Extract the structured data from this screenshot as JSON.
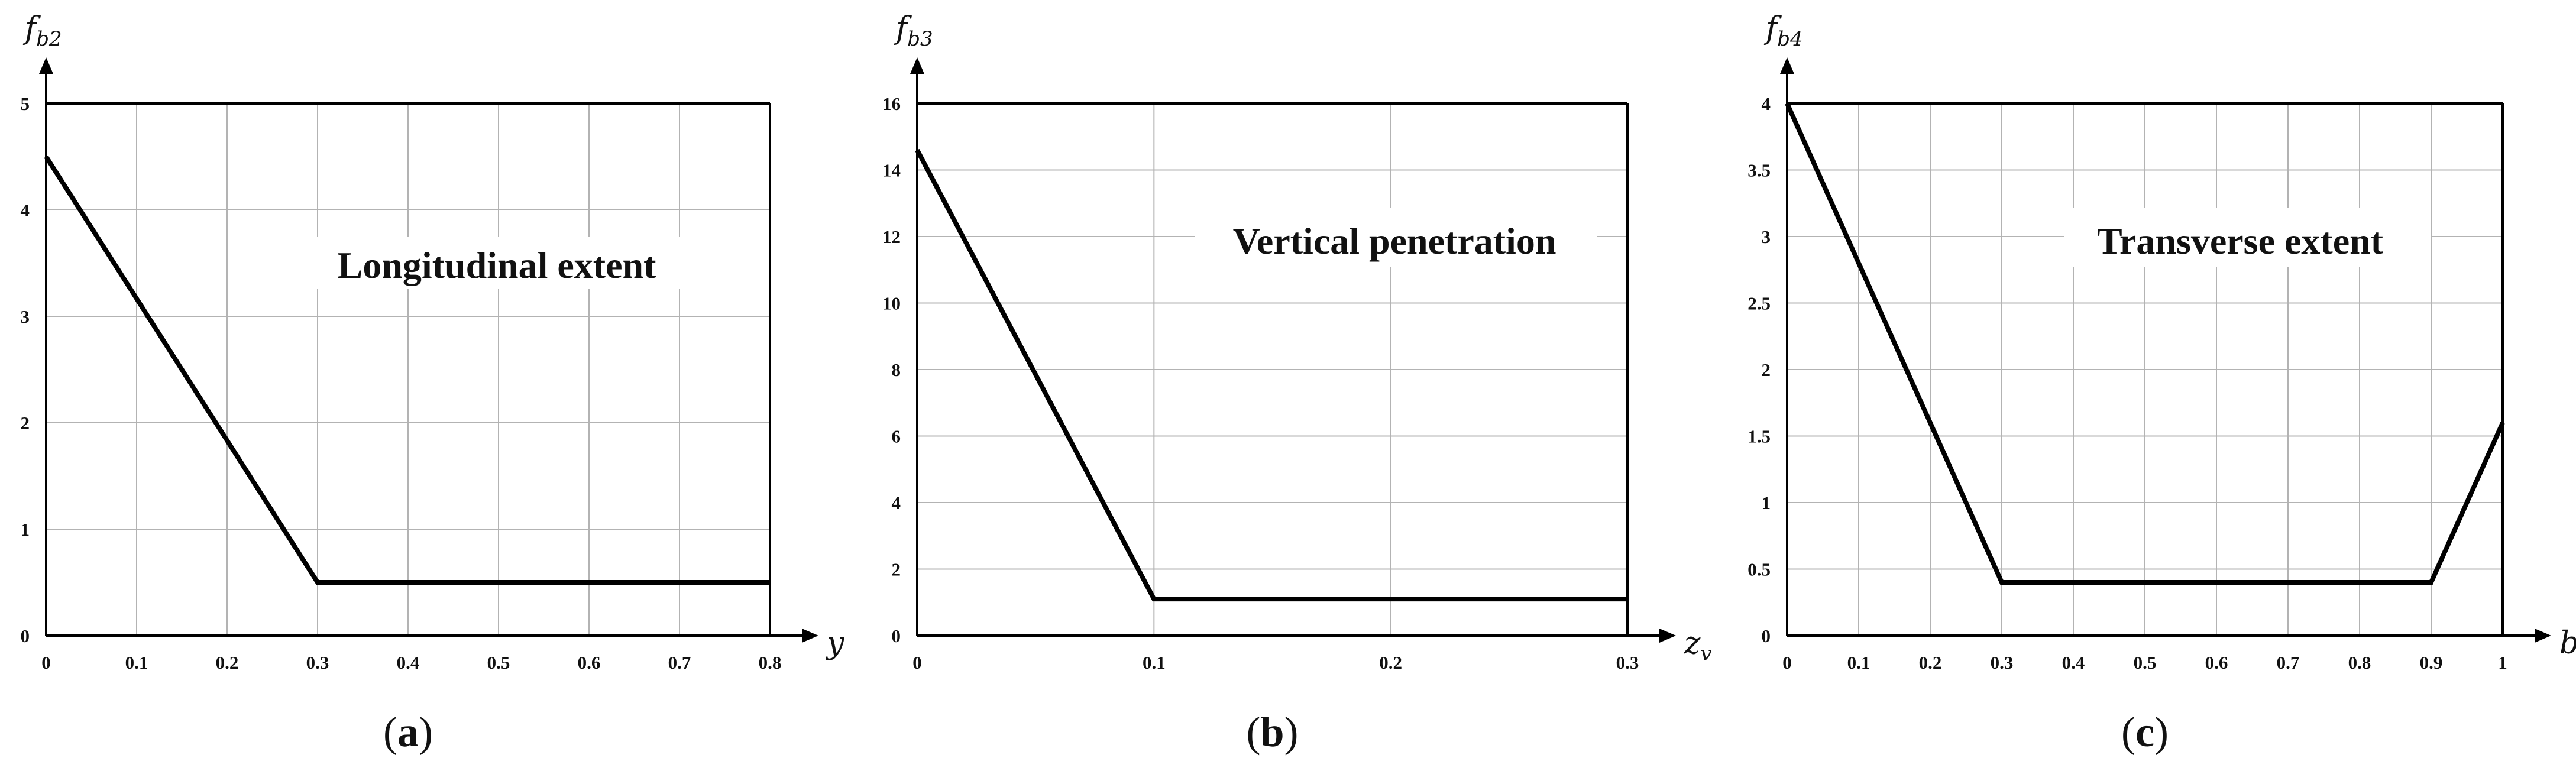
{
  "chart_data": [
    {
      "type": "line",
      "panel_label": {
        "open": "(",
        "letter": "a",
        "close": ")"
      },
      "title": "Longitudinal extent",
      "ylabel": {
        "base": "f",
        "sub": "b2"
      },
      "xlabel": {
        "base": "y",
        "sub": ""
      },
      "xlim": [
        0,
        0.8
      ],
      "ylim": [
        0,
        5
      ],
      "x_ticks": [
        0,
        0.1,
        0.2,
        0.3,
        0.4,
        0.5,
        0.6,
        0.7,
        0.8
      ],
      "x_tick_labels": [
        "0",
        "0.1",
        "0.2",
        "0.3",
        "0.4",
        "0.5",
        "0.6",
        "0.7",
        "0.8"
      ],
      "y_ticks": [
        0,
        1,
        2,
        3,
        4,
        5
      ],
      "y_tick_labels": [
        "0",
        "1",
        "2",
        "3",
        "4",
        "5"
      ],
      "grid": true,
      "series": [
        {
          "x": [
            0,
            0.3,
            0.8
          ],
          "y": [
            4.5,
            0.5,
            0.5
          ]
        }
      ]
    },
    {
      "type": "line",
      "panel_label": {
        "open": "(",
        "letter": "b",
        "close": ")"
      },
      "title": "Vertical penetration",
      "ylabel": {
        "base": "f",
        "sub": "b3"
      },
      "xlabel": {
        "base": "z",
        "sub": "v"
      },
      "xlim": [
        0,
        0.3
      ],
      "ylim": [
        0,
        16
      ],
      "x_ticks": [
        0,
        0.1,
        0.2,
        0.3
      ],
      "x_tick_labels": [
        "0",
        "0.1",
        "0.2",
        "0.3"
      ],
      "y_ticks": [
        0,
        2,
        4,
        6,
        8,
        10,
        12,
        14,
        16
      ],
      "y_tick_labels": [
        "0",
        "2",
        "4",
        "6",
        "8",
        "10",
        "12",
        "14",
        "16"
      ],
      "grid": true,
      "series": [
        {
          "x": [
            0,
            0.1,
            0.3
          ],
          "y": [
            14.6,
            1.1,
            1.1
          ]
        }
      ]
    },
    {
      "type": "line",
      "panel_label": {
        "open": "(",
        "letter": "c",
        "close": ")"
      },
      "title": "Transverse extent",
      "ylabel": {
        "base": "f",
        "sub": "b4"
      },
      "xlabel": {
        "base": "b",
        "sub": ""
      },
      "xlim": [
        0,
        1
      ],
      "ylim": [
        0,
        4
      ],
      "x_ticks": [
        0,
        0.1,
        0.2,
        0.3,
        0.4,
        0.5,
        0.6,
        0.7,
        0.8,
        0.9,
        1
      ],
      "x_tick_labels": [
        "0",
        "0.1",
        "0.2",
        "0.3",
        "0.4",
        "0.5",
        "0.6",
        "0.7",
        "0.8",
        "0.9",
        "1"
      ],
      "y_ticks": [
        0,
        0.5,
        1,
        1.5,
        2,
        2.5,
        3,
        3.5,
        4
      ],
      "y_tick_labels": [
        "0",
        "0.5",
        "1",
        "1.5",
        "2",
        "2.5",
        "3",
        "3.5",
        "4"
      ],
      "grid": true,
      "series": [
        {
          "x": [
            0,
            0.3,
            0.9,
            1
          ],
          "y": [
            4,
            0.4,
            0.4,
            1.6
          ]
        }
      ]
    }
  ]
}
